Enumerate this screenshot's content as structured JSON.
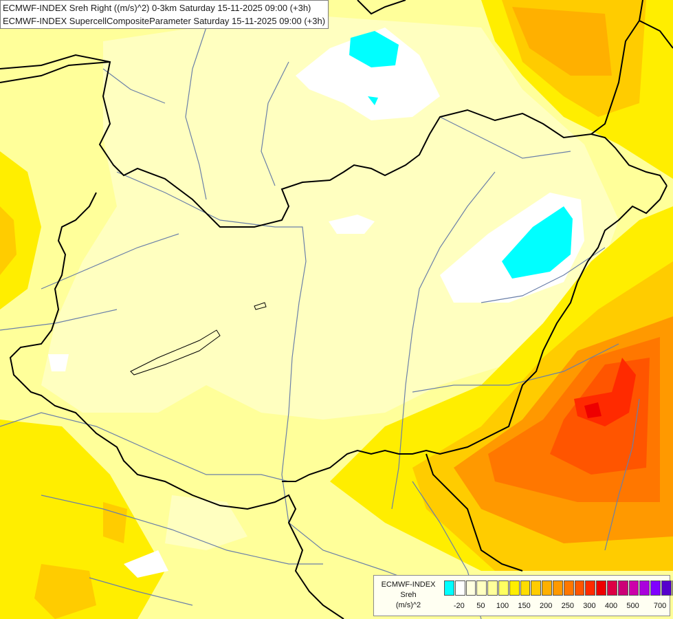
{
  "title": {
    "line1": "ECMWF-INDEX Sreh Right ((m/s)^2) 0-3km Saturday 15-11-2025 09:00 (+3h)",
    "line2": "ECMWF-INDEX SupercellCompositeParameter Saturday 15-11-2025 09:00 (+3h)"
  },
  "legend": {
    "model": "ECMWF-INDEX",
    "parameter": "Sreh",
    "unit": "(m/s)^2",
    "colors": [
      "#00ffff",
      "#ffffff",
      "#ffffe0",
      "#ffffc0",
      "#ffff9a",
      "#ffff60",
      "#ffee00",
      "#ffdd00",
      "#ffcc00",
      "#ffb000",
      "#ff9900",
      "#ff7700",
      "#ff5500",
      "#ff2a00",
      "#ee0000",
      "#dd0044",
      "#cc0077",
      "#cc00aa",
      "#aa00dd",
      "#8000ff",
      "#5500cc",
      "#330099",
      "#1a0066"
    ],
    "tick_labels": [
      "-20",
      "50",
      "100",
      "150",
      "200",
      "250",
      "300",
      "400",
      "500",
      "700"
    ]
  },
  "colors": {
    "light": "#ffffc0",
    "base": "#ffff9a",
    "yellow": "#ffee00",
    "gold": "#ffcc00",
    "orange": "#ff9900",
    "deep_orange": "#ff7700",
    "red_orange": "#ff5500",
    "red": "#ff2a00",
    "cyan": "#00ffff",
    "white": "#ffffff",
    "border": "#000000",
    "river": "#6a7fa8"
  }
}
